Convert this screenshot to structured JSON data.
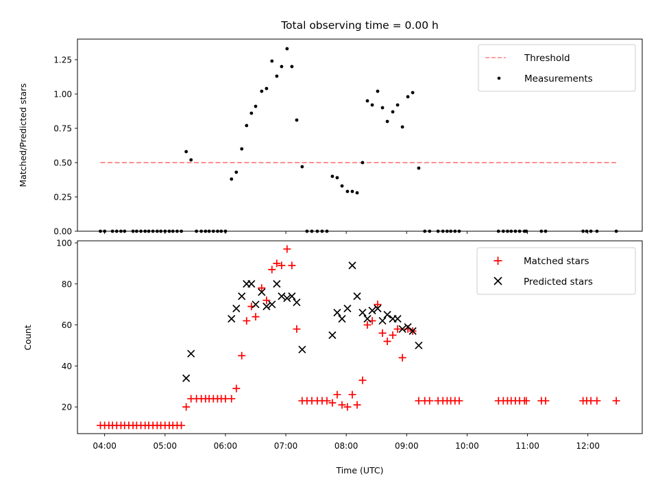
{
  "title": "Total observing time = 0.00 h",
  "chart_data": [
    {
      "type": "scatter",
      "ylabel": "Matched/Predicted stars",
      "xlim": [
        3.55,
        12.9
      ],
      "ylim": [
        0,
        1.4
      ],
      "yticks": [
        "0.00",
        "0.25",
        "0.50",
        "0.75",
        "1.00",
        "1.25"
      ],
      "ytick_values": [
        0,
        0.25,
        0.5,
        0.75,
        1.0,
        1.25
      ],
      "xticks_hours": [
        4,
        5,
        6,
        7,
        8,
        9,
        10,
        11,
        12
      ],
      "legend_position": "top-right",
      "colors": {
        "threshold": "#ff7f7f",
        "measurements": "#000000"
      },
      "threshold": {
        "name": "Threshold",
        "value": 0.5,
        "x_range": [
          3.93,
          12.47
        ]
      },
      "measurements": {
        "name": "Measurements",
        "x": [
          3.93,
          4.0,
          4.13,
          4.2,
          4.27,
          4.33,
          4.47,
          4.53,
          4.6,
          4.67,
          4.73,
          4.8,
          4.87,
          4.93,
          5.0,
          5.07,
          5.13,
          5.2,
          5.27,
          5.35,
          5.43,
          5.52,
          5.6,
          5.67,
          5.73,
          5.8,
          5.87,
          5.93,
          6.0,
          6.1,
          6.18,
          6.27,
          6.35,
          6.43,
          6.5,
          6.6,
          6.68,
          6.77,
          6.85,
          6.93,
          7.02,
          7.1,
          7.18,
          7.27,
          7.35,
          7.43,
          7.52,
          7.6,
          7.68,
          7.77,
          7.85,
          7.93,
          8.02,
          8.1,
          8.18,
          8.27,
          8.35,
          8.43,
          8.52,
          8.6,
          8.68,
          8.77,
          8.85,
          8.93,
          9.02,
          9.1,
          9.2,
          9.3,
          9.38,
          9.52,
          9.6,
          9.67,
          9.73,
          9.8,
          9.87,
          10.52,
          10.6,
          10.67,
          10.73,
          10.8,
          10.87,
          10.95,
          10.98,
          11.23,
          11.3,
          11.92,
          11.98,
          12.05,
          12.15,
          12.47
        ],
        "y": [
          0,
          0,
          0,
          0,
          0,
          0,
          0,
          0,
          0,
          0,
          0,
          0,
          0,
          0,
          0,
          0,
          0,
          0,
          0,
          0.58,
          0.52,
          0,
          0,
          0,
          0,
          0,
          0,
          0,
          0,
          0.38,
          0.43,
          0.6,
          0.77,
          0.86,
          0.91,
          1.02,
          1.04,
          1.24,
          1.13,
          1.2,
          1.33,
          1.2,
          0.81,
          0.47,
          0,
          0,
          0,
          0,
          0,
          0.4,
          0.39,
          0.33,
          0.29,
          0.29,
          0.28,
          0.5,
          0.95,
          0.92,
          1.02,
          0.9,
          0.8,
          0.87,
          0.92,
          0.76,
          0.98,
          1.01,
          0.46,
          0,
          0,
          0,
          0,
          0,
          0,
          0,
          0,
          0,
          0,
          0,
          0,
          0,
          0,
          0,
          0,
          0,
          0,
          0,
          0,
          0,
          0,
          0
        ]
      }
    },
    {
      "type": "scatter",
      "xlabel": "Time (UTC)",
      "ylabel": "Count",
      "xlim": [
        3.55,
        12.9
      ],
      "ylim": [
        7,
        101
      ],
      "yticks": [
        "20",
        "40",
        "60",
        "80",
        "100"
      ],
      "ytick_values": [
        20,
        40,
        60,
        80,
        100
      ],
      "xticks_hours": [
        4,
        5,
        6,
        7,
        8,
        9,
        10,
        11,
        12
      ],
      "xtick_labels": [
        "04:00",
        "05:00",
        "06:00",
        "07:00",
        "08:00",
        "09:00",
        "10:00",
        "11:00",
        "12:00"
      ],
      "legend_position": "top-right",
      "colors": {
        "matched": "#ff0000",
        "predicted": "#000000"
      },
      "matched": {
        "name": "Matched stars",
        "x": [
          3.93,
          4.0,
          4.07,
          4.13,
          4.2,
          4.27,
          4.33,
          4.4,
          4.47,
          4.53,
          4.6,
          4.67,
          4.73,
          4.8,
          4.87,
          4.93,
          5.0,
          5.07,
          5.13,
          5.2,
          5.27,
          5.35,
          5.43,
          5.52,
          5.6,
          5.67,
          5.73,
          5.8,
          5.87,
          5.93,
          6.0,
          6.1,
          6.18,
          6.27,
          6.35,
          6.43,
          6.5,
          6.6,
          6.68,
          6.77,
          6.85,
          6.93,
          7.02,
          7.1,
          7.18,
          7.27,
          7.35,
          7.43,
          7.52,
          7.6,
          7.68,
          7.77,
          7.85,
          7.93,
          8.02,
          8.1,
          8.18,
          8.27,
          8.35,
          8.43,
          8.52,
          8.6,
          8.68,
          8.77,
          8.85,
          8.93,
          9.02,
          9.1,
          9.2,
          9.3,
          9.38,
          9.52,
          9.6,
          9.67,
          9.73,
          9.8,
          9.87,
          10.52,
          10.6,
          10.67,
          10.73,
          10.8,
          10.87,
          10.95,
          10.98,
          11.23,
          11.3,
          11.92,
          11.98,
          12.05,
          12.15,
          12.47
        ],
        "y": [
          11,
          11,
          11,
          11,
          11,
          11,
          11,
          11,
          11,
          11,
          11,
          11,
          11,
          11,
          11,
          11,
          11,
          11,
          11,
          11,
          11,
          20,
          24,
          24,
          24,
          24,
          24,
          24,
          24,
          24,
          24,
          24,
          29,
          45,
          62,
          69,
          64,
          78,
          72,
          87,
          90,
          89,
          97,
          89,
          58,
          23,
          23,
          23,
          23,
          23,
          23,
          22,
          26,
          21,
          20,
          26,
          21,
          33,
          60,
          62,
          70,
          56,
          52,
          55,
          58,
          44,
          58,
          57,
          23,
          23,
          23,
          23,
          23,
          23,
          23,
          23,
          23,
          23,
          23,
          23,
          23,
          23,
          23,
          23,
          23,
          23,
          23,
          23,
          23,
          23,
          23,
          23
        ]
      },
      "predicted": {
        "name": "Predicted stars",
        "x": [
          5.35,
          5.43,
          6.1,
          6.18,
          6.27,
          6.35,
          6.43,
          6.5,
          6.6,
          6.68,
          6.77,
          6.85,
          6.93,
          7.02,
          7.1,
          7.18,
          7.27,
          7.77,
          7.85,
          7.93,
          8.02,
          8.1,
          8.18,
          8.27,
          8.35,
          8.43,
          8.52,
          8.6,
          8.68,
          8.77,
          8.85,
          8.93,
          9.02,
          9.1,
          9.2
        ],
        "y": [
          34,
          46,
          63,
          68,
          74,
          80,
          80,
          70,
          76,
          69,
          70,
          80,
          74,
          73,
          74,
          71,
          48,
          55,
          66,
          63,
          68,
          89,
          74,
          66,
          63,
          67,
          68,
          62,
          65,
          63,
          63,
          58,
          59,
          57,
          50
        ]
      }
    }
  ]
}
